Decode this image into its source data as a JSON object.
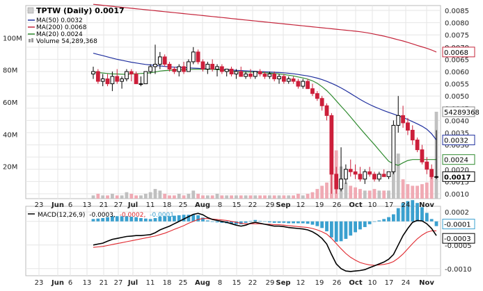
{
  "colors": {
    "ma50": "#1f2f9e",
    "ma200": "#c4243a",
    "ma20": "#2e8a2e",
    "up": "#000000",
    "down": "#cc1f3a",
    "vol_down": "#f0aab4",
    "vol_up": "#c0c0c0",
    "macd_hist": "#3aa0cf",
    "macd_line": "#000000",
    "signal_line": "#e0282e",
    "grid": "#e6e6e6"
  },
  "price_panel": {
    "legend": {
      "title": "TPTW (Daily) 0.0017",
      "ma50": "MA(50) 0.0032",
      "ma200": "MA(200) 0.0068",
      "ma20": "MA(20) 0.0024",
      "volume": "Volume 54,289,368"
    },
    "price_ticks": [
      "0.0085",
      "0.0080",
      "0.0075",
      "0.0070",
      "0.0065",
      "0.0060",
      "0.0055",
      "0.0050",
      "0.0045",
      "0.0040",
      "0.0035",
      "0.0030",
      "0.0025",
      "0.0020",
      "0.0015",
      "0.0010"
    ],
    "volume_ticks": [
      "100M",
      "80M",
      "60M",
      "40M",
      "20M"
    ],
    "badges": {
      "ma200": "0.0068",
      "ma50": "0.0032",
      "ma20": "0.0024",
      "close": "0.0017",
      "volume": "54289368"
    }
  },
  "macd_panel": {
    "legend": {
      "label": "MACD(12,26,9)",
      "macd": "-0.0003,",
      "signal": "-0.0002,",
      "hist": "-0.0001"
    },
    "ticks": [
      "0.0002",
      "0.0000",
      "-0.0005",
      "-0.0010"
    ],
    "badges": {
      "hist": "-0.0001",
      "macd": "-0.0003"
    }
  },
  "x_labels": [
    {
      "text": "23",
      "bold": false
    },
    {
      "text": "Jun",
      "bold": true
    },
    {
      "text": "6",
      "bold": false
    },
    {
      "text": "13",
      "bold": false
    },
    {
      "text": "21",
      "bold": false
    },
    {
      "text": "27",
      "bold": false
    },
    {
      "text": "Jul",
      "bold": true
    },
    {
      "text": "11",
      "bold": false
    },
    {
      "text": "18",
      "bold": false
    },
    {
      "text": "25",
      "bold": false
    },
    {
      "text": "Aug",
      "bold": true
    },
    {
      "text": "8",
      "bold": false
    },
    {
      "text": "15",
      "bold": false
    },
    {
      "text": "22",
      "bold": false
    },
    {
      "text": "29",
      "bold": false
    },
    {
      "text": "Sep",
      "bold": true
    },
    {
      "text": "12",
      "bold": false
    },
    {
      "text": "19",
      "bold": false
    },
    {
      "text": "26",
      "bold": false
    },
    {
      "text": "Oct",
      "bold": true
    },
    {
      "text": "10",
      "bold": false
    },
    {
      "text": "17",
      "bold": false
    },
    {
      "text": "24",
      "bold": false
    },
    {
      "text": "Nov",
      "bold": true
    }
  ],
  "chart_data": {
    "type": "candlestick",
    "ylim": [
      0.0008,
      0.0087
    ],
    "volume_ylim": [
      0,
      120
    ],
    "macd_ylim": [
      -0.00115,
      0.00032
    ],
    "ohlc": [
      [
        0.0059,
        0.0062,
        0.0057,
        0.006
      ],
      [
        0.006,
        0.0061,
        0.0055,
        0.0056
      ],
      [
        0.0056,
        0.0059,
        0.0054,
        0.0057
      ],
      [
        0.0057,
        0.0059,
        0.0054,
        0.0055
      ],
      [
        0.0055,
        0.006,
        0.0052,
        0.0058
      ],
      [
        0.0058,
        0.0061,
        0.0055,
        0.0056
      ],
      [
        0.0056,
        0.0058,
        0.0053,
        0.0057
      ],
      [
        0.0057,
        0.0061,
        0.0056,
        0.006
      ],
      [
        0.006,
        0.0061,
        0.0056,
        0.0059
      ],
      [
        0.0059,
        0.006,
        0.0055,
        0.0055
      ],
      [
        0.0055,
        0.0058,
        0.0054,
        0.0055
      ],
      [
        0.0055,
        0.006,
        0.0055,
        0.006
      ],
      [
        0.006,
        0.0063,
        0.0059,
        0.0062
      ],
      [
        0.0062,
        0.0071,
        0.0059,
        0.0063
      ],
      [
        0.0063,
        0.0068,
        0.0061,
        0.0066
      ],
      [
        0.0066,
        0.0067,
        0.0062,
        0.0063
      ],
      [
        0.0063,
        0.0064,
        0.006,
        0.0061
      ],
      [
        0.0061,
        0.0062,
        0.0059,
        0.006
      ],
      [
        0.006,
        0.0063,
        0.0058,
        0.0062
      ],
      [
        0.0062,
        0.0064,
        0.0059,
        0.006
      ],
      [
        0.006,
        0.0065,
        0.006,
        0.0064
      ],
      [
        0.0064,
        0.007,
        0.0063,
        0.0068
      ],
      [
        0.0068,
        0.0069,
        0.0063,
        0.0064
      ],
      [
        0.0064,
        0.0065,
        0.006,
        0.0061
      ],
      [
        0.0061,
        0.0064,
        0.0059,
        0.0063
      ],
      [
        0.0063,
        0.0065,
        0.006,
        0.0061
      ],
      [
        0.0061,
        0.0063,
        0.0058,
        0.0062
      ],
      [
        0.0062,
        0.0063,
        0.0059,
        0.006
      ],
      [
        0.006,
        0.0061,
        0.0058,
        0.0061
      ],
      [
        0.0061,
        0.0062,
        0.0058,
        0.0059
      ],
      [
        0.0059,
        0.0061,
        0.0057,
        0.006
      ],
      [
        0.006,
        0.0062,
        0.0058,
        0.0058
      ],
      [
        0.0058,
        0.006,
        0.0057,
        0.0059
      ],
      [
        0.0059,
        0.0061,
        0.0057,
        0.0058
      ],
      [
        0.0058,
        0.006,
        0.0057,
        0.006
      ],
      [
        0.006,
        0.0061,
        0.0058,
        0.0059
      ],
      [
        0.0059,
        0.006,
        0.0057,
        0.0058
      ],
      [
        0.0058,
        0.006,
        0.0057,
        0.0059
      ],
      [
        0.0059,
        0.006,
        0.0056,
        0.0057
      ],
      [
        0.0057,
        0.0059,
        0.0055,
        0.0058
      ],
      [
        0.0058,
        0.0059,
        0.0055,
        0.0056
      ],
      [
        0.0056,
        0.0058,
        0.0055,
        0.0057
      ],
      [
        0.0057,
        0.0058,
        0.0055,
        0.0056
      ],
      [
        0.0056,
        0.0057,
        0.0053,
        0.0054
      ],
      [
        0.0054,
        0.0057,
        0.0053,
        0.0056
      ],
      [
        0.0056,
        0.0057,
        0.0053,
        0.0053
      ],
      [
        0.0053,
        0.0055,
        0.005,
        0.0051
      ],
      [
        0.0051,
        0.0052,
        0.0048,
        0.0049
      ],
      [
        0.0049,
        0.005,
        0.0044,
        0.0046
      ],
      [
        0.0046,
        0.0047,
        0.004,
        0.0042
      ],
      [
        0.0042,
        0.0043,
        0.001,
        0.0018
      ],
      [
        0.0018,
        0.0021,
        0.001,
        0.0012
      ],
      [
        0.0012,
        0.0029,
        0.0011,
        0.0016
      ],
      [
        0.0016,
        0.0022,
        0.0014,
        0.002
      ],
      [
        0.002,
        0.0024,
        0.0017,
        0.0019
      ],
      [
        0.0019,
        0.0022,
        0.0016,
        0.0018
      ],
      [
        0.0018,
        0.0021,
        0.0015,
        0.0016
      ],
      [
        0.0016,
        0.002,
        0.0014,
        0.0019
      ],
      [
        0.0019,
        0.0021,
        0.0017,
        0.0018
      ],
      [
        0.0018,
        0.0019,
        0.0015,
        0.0016
      ],
      [
        0.0016,
        0.0019,
        0.0015,
        0.0018
      ],
      [
        0.0018,
        0.002,
        0.0017,
        0.0017
      ],
      [
        0.0017,
        0.0019,
        0.0016,
        0.0019
      ],
      [
        0.0019,
        0.004,
        0.0018,
        0.0038
      ],
      [
        0.0038,
        0.005,
        0.0035,
        0.0042
      ],
      [
        0.0042,
        0.0046,
        0.0037,
        0.0039
      ],
      [
        0.0039,
        0.0041,
        0.0034,
        0.0036
      ],
      [
        0.0036,
        0.0038,
        0.003,
        0.0032
      ],
      [
        0.0032,
        0.0033,
        0.0027,
        0.0028
      ],
      [
        0.0028,
        0.003,
        0.0022,
        0.0023
      ],
      [
        0.0023,
        0.0025,
        0.0018,
        0.002
      ],
      [
        0.002,
        0.0022,
        0.0016,
        0.0017
      ],
      [
        0.0017,
        0.0036,
        0.0016,
        0.0017
      ]
    ],
    "volume": [
      2,
      3,
      2,
      2,
      3,
      2,
      2,
      4,
      3,
      2,
      2,
      3,
      4,
      6,
      5,
      3,
      2,
      2,
      3,
      2,
      3,
      5,
      3,
      2,
      2,
      2,
      3,
      2,
      2,
      2,
      2,
      2,
      2,
      2,
      2,
      2,
      2,
      2,
      2,
      2,
      2,
      2,
      2,
      3,
      2,
      3,
      4,
      6,
      8,
      10,
      40,
      30,
      20,
      10,
      8,
      7,
      6,
      5,
      5,
      6,
      5,
      5,
      5,
      18,
      28,
      12,
      9,
      8,
      8,
      9,
      10,
      14,
      54
    ],
    "ma20": [
      0.00598,
      0.00596,
      0.00594,
      0.00592,
      0.0059,
      0.0059,
      0.00589,
      0.00589,
      0.0059,
      0.00591,
      0.00592,
      0.00593,
      0.00595,
      0.00598,
      0.00602,
      0.00604,
      0.00605,
      0.00606,
      0.00607,
      0.00607,
      0.00608,
      0.00609,
      0.00609,
      0.00609,
      0.00609,
      0.00609,
      0.00608,
      0.00606,
      0.00604,
      0.00602,
      0.006,
      0.00599,
      0.00598,
      0.00598,
      0.00597,
      0.00596,
      0.00595,
      0.00594,
      0.00592,
      0.0059,
      0.00588,
      0.00585,
      0.00582,
      0.00578,
      0.00574,
      0.00569,
      0.00562,
      0.00552,
      0.00538,
      0.00522,
      0.00502,
      0.0048,
      0.00458,
      0.00437,
      0.00414,
      0.00391,
      0.00368,
      0.00345,
      0.00323,
      0.00301,
      0.00278,
      0.00255,
      0.00233,
      0.00222,
      0.00216,
      0.00227,
      0.00236,
      0.0024,
      0.0024,
      0.0024,
      0.0024,
      0.0024,
      0.0024
    ],
    "ma50": [
      0.00675,
      0.0067,
      0.00665,
      0.0066,
      0.00655,
      0.0065,
      0.00646,
      0.00642,
      0.00638,
      0.00635,
      0.00632,
      0.00629,
      0.00627,
      0.00625,
      0.00623,
      0.00621,
      0.00619,
      0.00618,
      0.00617,
      0.00616,
      0.00615,
      0.00614,
      0.00613,
      0.00612,
      0.00611,
      0.0061,
      0.00609,
      0.00608,
      0.00607,
      0.00606,
      0.00605,
      0.00604,
      0.00603,
      0.00602,
      0.00601,
      0.006,
      0.00599,
      0.00598,
      0.00597,
      0.00596,
      0.00595,
      0.00593,
      0.00591,
      0.00588,
      0.00585,
      0.00582,
      0.00578,
      0.00573,
      0.00567,
      0.0056,
      0.00552,
      0.00543,
      0.00533,
      0.00522,
      0.0051,
      0.00498,
      0.00486,
      0.00475,
      0.00465,
      0.00456,
      0.00448,
      0.0044,
      0.00433,
      0.00426,
      0.00419,
      0.00412,
      0.00404,
      0.00395,
      0.00386,
      0.00376,
      0.00364,
      0.00345,
      0.0032
    ],
    "ma200": [
      0.00875,
      0.00873,
      0.00871,
      0.00869,
      0.00867,
      0.00865,
      0.00863,
      0.00861,
      0.00859,
      0.00857,
      0.00855,
      0.00853,
      0.00851,
      0.00849,
      0.00847,
      0.00845,
      0.00843,
      0.00841,
      0.00839,
      0.00837,
      0.00835,
      0.00833,
      0.00831,
      0.00829,
      0.00827,
      0.00825,
      0.00823,
      0.00821,
      0.00819,
      0.00817,
      0.00815,
      0.00813,
      0.00811,
      0.00809,
      0.00807,
      0.00805,
      0.00803,
      0.00801,
      0.00799,
      0.00797,
      0.00795,
      0.00793,
      0.00791,
      0.00789,
      0.00787,
      0.00785,
      0.00783,
      0.00781,
      0.00779,
      0.00777,
      0.00775,
      0.00773,
      0.00771,
      0.00769,
      0.00767,
      0.00765,
      0.00763,
      0.0076,
      0.00757,
      0.00753,
      0.00749,
      0.00745,
      0.0074,
      0.00735,
      0.0073,
      0.00725,
      0.00719,
      0.00713,
      0.00707,
      0.00701,
      0.00695,
      0.00688,
      0.0068
    ],
    "macd": [
      -0.0005,
      -0.00048,
      -0.00046,
      -0.00042,
      -0.00038,
      -0.00036,
      -0.00034,
      -0.00032,
      -0.00031,
      -0.0003,
      -0.0003,
      -0.00029,
      -0.00028,
      -0.00024,
      -0.00018,
      -0.00014,
      -0.0001,
      -5e-05,
      0.0,
      5e-05,
      0.0001,
      0.00015,
      0.00017,
      0.00014,
      8e-05,
      4e-05,
      2e-05,
      0.0,
      -2e-05,
      -5e-05,
      -8e-05,
      -0.0001,
      -8e-05,
      -4e-05,
      -2e-05,
      -4e-05,
      -6e-05,
      -8e-05,
      -0.0001,
      -0.0001,
      -0.00011,
      -0.00013,
      -0.00014,
      -0.00015,
      -0.00016,
      -0.00018,
      -0.00022,
      -0.00028,
      -0.00036,
      -0.00048,
      -0.0007,
      -0.0009,
      -0.001,
      -0.00105,
      -0.00106,
      -0.00105,
      -0.00104,
      -0.00102,
      -0.00098,
      -0.00094,
      -0.0009,
      -0.00086,
      -0.0008,
      -0.0007,
      -0.0005,
      -0.0003,
      -0.00015,
      -2e-05,
      2e-05,
      1e-05,
      -5e-05,
      -0.00015,
      -0.0003
    ],
    "signal": [
      -0.00055,
      -0.00054,
      -0.00053,
      -0.00051,
      -0.00049,
      -0.00047,
      -0.00045,
      -0.00043,
      -0.00041,
      -0.00039,
      -0.00037,
      -0.00035,
      -0.00033,
      -0.00031,
      -0.00028,
      -0.00025,
      -0.00021,
      -0.00017,
      -0.00013,
      -9e-05,
      -4e-05,
      0.0,
      4e-05,
      6e-05,
      6e-05,
      5e-05,
      4e-05,
      3e-05,
      2e-05,
      0.0,
      -2e-05,
      -4e-05,
      -5e-05,
      -5e-05,
      -5e-05,
      -5e-05,
      -6e-05,
      -6e-05,
      -7e-05,
      -7e-05,
      -8e-05,
      -9e-05,
      -0.0001,
      -0.00011,
      -0.00012,
      -0.00013,
      -0.00015,
      -0.00018,
      -0.00022,
      -0.00027,
      -0.00036,
      -0.00047,
      -0.00058,
      -0.00068,
      -0.00076,
      -0.00082,
      -0.00087,
      -0.0009,
      -0.00092,
      -0.00093,
      -0.00092,
      -0.00091,
      -0.00089,
      -0.00085,
      -0.00078,
      -0.00069,
      -0.00058,
      -0.00047,
      -0.00037,
      -0.00029,
      -0.00023,
      -0.0002,
      -0.0002
    ]
  }
}
